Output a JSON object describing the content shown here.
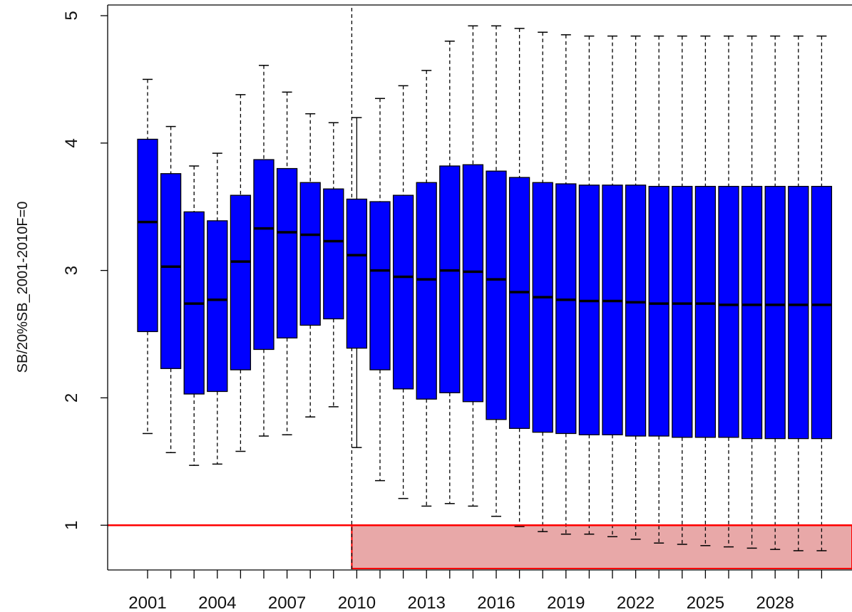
{
  "chart_data": {
    "type": "boxplot",
    "title": "",
    "xlabel": "",
    "ylabel": "SB/20%SB_2001-2010F=0",
    "ylim": [
      0.65,
      5.1
    ],
    "y_ticks": [
      1,
      2,
      3,
      4,
      5
    ],
    "x_tick_labels_shown": [
      "2001",
      "2004",
      "2007",
      "2010",
      "2013",
      "2016",
      "2019",
      "2022",
      "2025",
      "2028"
    ],
    "divider_year": 2010,
    "reference_line": {
      "y": 1,
      "color": "#ff0000"
    },
    "colors": {
      "box_fill": "#0000ff",
      "box_border": "#000000",
      "shaded_region": "#e8a8a8",
      "region_border": "#ff0000"
    },
    "years": [
      2001,
      2002,
      2003,
      2004,
      2005,
      2006,
      2007,
      2008,
      2009,
      2010,
      2011,
      2012,
      2013,
      2014,
      2015,
      2016,
      2017,
      2018,
      2019,
      2020,
      2021,
      2022,
      2023,
      2024,
      2025,
      2026,
      2027,
      2028,
      2029,
      2030
    ],
    "boxes": [
      {
        "min": 1.72,
        "q1": 2.52,
        "median": 3.38,
        "q3": 4.03,
        "max": 4.5
      },
      {
        "min": 1.57,
        "q1": 2.23,
        "median": 3.03,
        "q3": 3.76,
        "max": 4.13
      },
      {
        "min": 1.47,
        "q1": 2.03,
        "median": 2.74,
        "q3": 3.46,
        "max": 3.82
      },
      {
        "min": 1.48,
        "q1": 2.05,
        "median": 2.77,
        "q3": 3.39,
        "max": 3.92
      },
      {
        "min": 1.58,
        "q1": 2.22,
        "median": 3.07,
        "q3": 3.59,
        "max": 4.38
      },
      {
        "min": 1.7,
        "q1": 2.38,
        "median": 3.33,
        "q3": 3.87,
        "max": 4.61
      },
      {
        "min": 1.71,
        "q1": 2.47,
        "median": 3.3,
        "q3": 3.8,
        "max": 4.4
      },
      {
        "min": 1.85,
        "q1": 2.57,
        "median": 3.28,
        "q3": 3.69,
        "max": 4.23
      },
      {
        "min": 1.93,
        "q1": 2.62,
        "median": 3.23,
        "q3": 3.64,
        "max": 4.16
      },
      {
        "min": 1.61,
        "q1": 2.39,
        "median": 3.12,
        "q3": 3.56,
        "max": 4.2
      },
      {
        "min": 1.35,
        "q1": 2.22,
        "median": 3.0,
        "q3": 3.54,
        "max": 4.35
      },
      {
        "min": 1.21,
        "q1": 2.07,
        "median": 2.95,
        "q3": 3.59,
        "max": 4.45
      },
      {
        "min": 1.15,
        "q1": 1.99,
        "median": 2.93,
        "q3": 3.69,
        "max": 4.57
      },
      {
        "min": 1.17,
        "q1": 2.04,
        "median": 3.0,
        "q3": 3.82,
        "max": 4.8
      },
      {
        "min": 1.15,
        "q1": 1.97,
        "median": 2.99,
        "q3": 3.83,
        "max": 4.92
      },
      {
        "min": 1.07,
        "q1": 1.83,
        "median": 2.93,
        "q3": 3.78,
        "max": 4.92
      },
      {
        "min": 0.99,
        "q1": 1.76,
        "median": 2.83,
        "q3": 3.73,
        "max": 4.9
      },
      {
        "min": 0.95,
        "q1": 1.73,
        "median": 2.79,
        "q3": 3.69,
        "max": 4.87
      },
      {
        "min": 0.93,
        "q1": 1.72,
        "median": 2.77,
        "q3": 3.68,
        "max": 4.85
      },
      {
        "min": 0.93,
        "q1": 1.71,
        "median": 2.76,
        "q3": 3.67,
        "max": 4.84
      },
      {
        "min": 0.91,
        "q1": 1.71,
        "median": 2.76,
        "q3": 3.67,
        "max": 4.84
      },
      {
        "min": 0.89,
        "q1": 1.7,
        "median": 2.75,
        "q3": 3.67,
        "max": 4.84
      },
      {
        "min": 0.86,
        "q1": 1.7,
        "median": 2.74,
        "q3": 3.66,
        "max": 4.84
      },
      {
        "min": 0.85,
        "q1": 1.69,
        "median": 2.74,
        "q3": 3.66,
        "max": 4.84
      },
      {
        "min": 0.84,
        "q1": 1.69,
        "median": 2.74,
        "q3": 3.66,
        "max": 4.84
      },
      {
        "min": 0.83,
        "q1": 1.69,
        "median": 2.73,
        "q3": 3.66,
        "max": 4.84
      },
      {
        "min": 0.82,
        "q1": 1.68,
        "median": 2.73,
        "q3": 3.66,
        "max": 4.84
      },
      {
        "min": 0.81,
        "q1": 1.68,
        "median": 2.73,
        "q3": 3.66,
        "max": 4.84
      },
      {
        "min": 0.8,
        "q1": 1.68,
        "median": 2.73,
        "q3": 3.66,
        "max": 4.84
      },
      {
        "min": 0.8,
        "q1": 1.68,
        "median": 2.73,
        "q3": 3.66,
        "max": 4.84
      }
    ]
  }
}
